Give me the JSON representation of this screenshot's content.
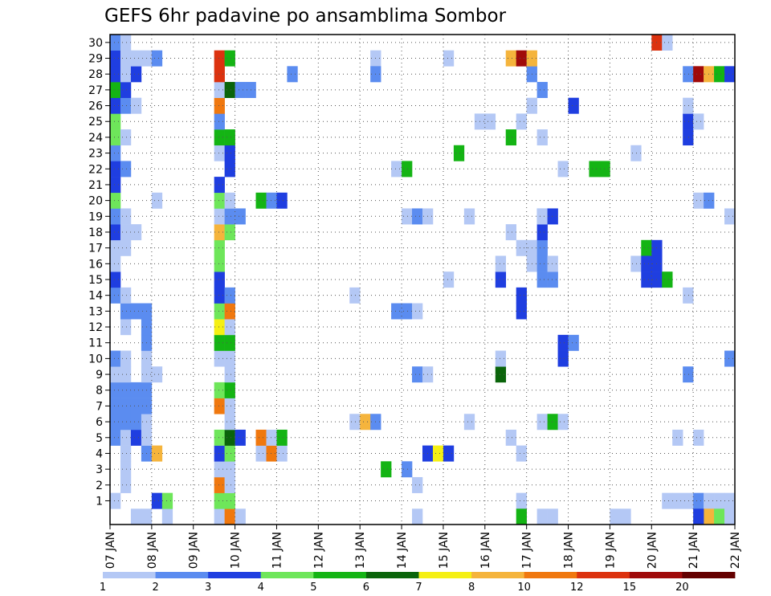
{
  "chart_data": {
    "type": "heatmap",
    "title": "GEFS 6hr padavine po ansamblima Sombor",
    "xlabel": "",
    "ylabel": "",
    "x_ticks": [
      "07 JAN",
      "08 JAN",
      "09 JAN",
      "10 JAN",
      "11 JAN",
      "12 JAN",
      "13 JAN",
      "14 JAN",
      "15 JAN",
      "16 JAN",
      "17 JAN",
      "18 JAN",
      "19 JAN",
      "20 JAN",
      "21 JAN",
      "22 JAN"
    ],
    "y_ticks": [
      1,
      2,
      3,
      4,
      5,
      6,
      7,
      8,
      9,
      10,
      11,
      12,
      13,
      14,
      15,
      16,
      17,
      18,
      19,
      20,
      21,
      22,
      23,
      24,
      25,
      26,
      27,
      28,
      29,
      30
    ],
    "xlim": [
      "07 JAN",
      "22 JAN"
    ],
    "ylim": [
      0,
      30
    ],
    "grid": true,
    "colorbar": {
      "labels": [
        "1",
        "2",
        "3",
        "4",
        "5",
        "6",
        "7",
        "8",
        "10",
        "12",
        "15",
        "20"
      ],
      "colors": [
        "#b4c8f5",
        "#5b8cf0",
        "#1f3ee0",
        "#6ee65a",
        "#14b414",
        "#0a640a",
        "#f5f014",
        "#f5b43c",
        "#f0780f",
        "#dc320f",
        "#a00a0a",
        "#640000"
      ]
    },
    "cells": [
      [
        0,
        1,
        1
      ],
      [
        1,
        2,
        1
      ],
      [
        1,
        3,
        1
      ],
      [
        1,
        4,
        1
      ],
      [
        0,
        5,
        2
      ],
      [
        0,
        6,
        2
      ],
      [
        0,
        7,
        2
      ],
      [
        0,
        8,
        2
      ],
      [
        0,
        9,
        1
      ],
      [
        0,
        10,
        2
      ],
      [
        1,
        13,
        4
      ],
      [
        0,
        14,
        2
      ],
      [
        0,
        15,
        3
      ],
      [
        0,
        16,
        1
      ],
      [
        0,
        17,
        1
      ],
      [
        0,
        18,
        3
      ],
      [
        0,
        19,
        2
      ],
      [
        0,
        20,
        4
      ],
      [
        0,
        21,
        3
      ],
      [
        0,
        22,
        3
      ],
      [
        0,
        23,
        2
      ],
      [
        0,
        24,
        4
      ],
      [
        0,
        25,
        4
      ],
      [
        0,
        26,
        3
      ],
      [
        0,
        27,
        5
      ],
      [
        0,
        28,
        3
      ],
      [
        0,
        29,
        3
      ],
      [
        0,
        30,
        2
      ],
      [
        1,
        5,
        1
      ],
      [
        1,
        6,
        2
      ],
      [
        1,
        7,
        2
      ],
      [
        1,
        8,
        2
      ],
      [
        1,
        9,
        1
      ],
      [
        1,
        10,
        1
      ],
      [
        1,
        12,
        1
      ],
      [
        1,
        13,
        2
      ],
      [
        1,
        14,
        1
      ],
      [
        1,
        17,
        1
      ],
      [
        1,
        18,
        1
      ],
      [
        1,
        19,
        1
      ],
      [
        1,
        22,
        2
      ],
      [
        1,
        24,
        1
      ],
      [
        1,
        26,
        2
      ],
      [
        1,
        27,
        3
      ],
      [
        1,
        28,
        1
      ],
      [
        1,
        29,
        1
      ],
      [
        1,
        30,
        1
      ],
      [
        2,
        0,
        1
      ],
      [
        2,
        5,
        3
      ],
      [
        2,
        6,
        2
      ],
      [
        2,
        7,
        2
      ],
      [
        2,
        8,
        2
      ],
      [
        2,
        13,
        2
      ],
      [
        2,
        18,
        1
      ],
      [
        2,
        26,
        1
      ],
      [
        2,
        28,
        3
      ],
      [
        2,
        29,
        1
      ],
      [
        3,
        0,
        1
      ],
      [
        3,
        4,
        2
      ],
      [
        3,
        5,
        1
      ],
      [
        3,
        6,
        1
      ],
      [
        3,
        7,
        2
      ],
      [
        3,
        8,
        2
      ],
      [
        3,
        9,
        1
      ],
      [
        3,
        10,
        1
      ],
      [
        3,
        11,
        2
      ],
      [
        3,
        12,
        2
      ],
      [
        3,
        13,
        2
      ],
      [
        3,
        29,
        1
      ],
      [
        4,
        1,
        3
      ],
      [
        4,
        4,
        8
      ],
      [
        4,
        9,
        1
      ],
      [
        4,
        20,
        1
      ],
      [
        4,
        29,
        2
      ],
      [
        5,
        0,
        1
      ],
      [
        5,
        1,
        4
      ],
      [
        10,
        0,
        1
      ],
      [
        10,
        1,
        4
      ],
      [
        10,
        2,
        9
      ],
      [
        10,
        3,
        1
      ],
      [
        10,
        4,
        3
      ],
      [
        10,
        5,
        4
      ],
      [
        10,
        7,
        9
      ],
      [
        10,
        8,
        4
      ],
      [
        10,
        10,
        1
      ],
      [
        10,
        11,
        5
      ],
      [
        10,
        12,
        7
      ],
      [
        10,
        13,
        4
      ],
      [
        10,
        14,
        3
      ],
      [
        10,
        15,
        3
      ],
      [
        10,
        16,
        4
      ],
      [
        10,
        17,
        4
      ],
      [
        10,
        18,
        8
      ],
      [
        10,
        19,
        1
      ],
      [
        10,
        20,
        4
      ],
      [
        10,
        21,
        3
      ],
      [
        10,
        23,
        1
      ],
      [
        10,
        24,
        5
      ],
      [
        10,
        25,
        2
      ],
      [
        10,
        26,
        9
      ],
      [
        10,
        27,
        1
      ],
      [
        10,
        28,
        10
      ],
      [
        10,
        29,
        10
      ],
      [
        11,
        0,
        9
      ],
      [
        11,
        1,
        4
      ],
      [
        11,
        2,
        1
      ],
      [
        11,
        3,
        1
      ],
      [
        11,
        4,
        4
      ],
      [
        11,
        5,
        6
      ],
      [
        11,
        6,
        1
      ],
      [
        11,
        7,
        1
      ],
      [
        11,
        8,
        5
      ],
      [
        11,
        9,
        1
      ],
      [
        11,
        10,
        1
      ],
      [
        11,
        11,
        5
      ],
      [
        11,
        12,
        1
      ],
      [
        11,
        13,
        9
      ],
      [
        11,
        14,
        2
      ],
      [
        11,
        18,
        4
      ],
      [
        11,
        19,
        2
      ],
      [
        11,
        20,
        1
      ],
      [
        11,
        22,
        3
      ],
      [
        11,
        23,
        3
      ],
      [
        11,
        24,
        5
      ],
      [
        11,
        27,
        6
      ],
      [
        11,
        29,
        5
      ],
      [
        12,
        0,
        1
      ],
      [
        12,
        5,
        3
      ],
      [
        12,
        19,
        2
      ],
      [
        12,
        27,
        2
      ],
      [
        13,
        27,
        2
      ],
      [
        14,
        4,
        1
      ],
      [
        14,
        5,
        9
      ],
      [
        14,
        20,
        5
      ],
      [
        15,
        4,
        9
      ],
      [
        15,
        5,
        1
      ],
      [
        15,
        20,
        2
      ],
      [
        16,
        4,
        1
      ],
      [
        16,
        5,
        5
      ],
      [
        16,
        20,
        3
      ],
      [
        17,
        28,
        2
      ],
      [
        23,
        6,
        1
      ],
      [
        23,
        14,
        1
      ],
      [
        24,
        6,
        8
      ],
      [
        25,
        6,
        2
      ],
      [
        25,
        29,
        1
      ],
      [
        25,
        28,
        2
      ],
      [
        26,
        3,
        5
      ],
      [
        27,
        13,
        2
      ],
      [
        27,
        22,
        1
      ],
      [
        28,
        3,
        2
      ],
      [
        28,
        13,
        2
      ],
      [
        28,
        19,
        1
      ],
      [
        28,
        22,
        5
      ],
      [
        29,
        0,
        1
      ],
      [
        29,
        2,
        1
      ],
      [
        29,
        9,
        2
      ],
      [
        29,
        13,
        1
      ],
      [
        29,
        19,
        2
      ],
      [
        30,
        4,
        3
      ],
      [
        30,
        9,
        1
      ],
      [
        30,
        19,
        1
      ],
      [
        31,
        4,
        7
      ],
      [
        32,
        4,
        3
      ],
      [
        32,
        15,
        1
      ],
      [
        32,
        29,
        1
      ],
      [
        33,
        23,
        5
      ],
      [
        34,
        6,
        1
      ],
      [
        34,
        19,
        1
      ],
      [
        35,
        25,
        1
      ],
      [
        36,
        25,
        1
      ],
      [
        37,
        9,
        6
      ],
      [
        37,
        10,
        1
      ],
      [
        37,
        15,
        3
      ],
      [
        37,
        16,
        1
      ],
      [
        38,
        5,
        1
      ],
      [
        38,
        18,
        1
      ],
      [
        38,
        24,
        5
      ],
      [
        38,
        29,
        8
      ],
      [
        39,
        1,
        1
      ],
      [
        39,
        4,
        1
      ],
      [
        39,
        0,
        5
      ],
      [
        39,
        13,
        3
      ],
      [
        39,
        14,
        3
      ],
      [
        39,
        25,
        1
      ],
      [
        39,
        17,
        1
      ],
      [
        39,
        29,
        11
      ],
      [
        40,
        16,
        1
      ],
      [
        40,
        17,
        1
      ],
      [
        40,
        26,
        1
      ],
      [
        40,
        28,
        2
      ],
      [
        40,
        29,
        8
      ],
      [
        41,
        6,
        1
      ],
      [
        41,
        0,
        1
      ],
      [
        41,
        15,
        2
      ],
      [
        41,
        16,
        2
      ],
      [
        41,
        17,
        2
      ],
      [
        41,
        18,
        3
      ],
      [
        41,
        19,
        2
      ],
      [
        41,
        19,
        1
      ],
      [
        41,
        24,
        1
      ],
      [
        41,
        27,
        2
      ],
      [
        42,
        0,
        1
      ],
      [
        42,
        6,
        5
      ],
      [
        42,
        15,
        2
      ],
      [
        42,
        16,
        1
      ],
      [
        42,
        19,
        3
      ],
      [
        43,
        6,
        1
      ],
      [
        43,
        10,
        3
      ],
      [
        43,
        11,
        3
      ],
      [
        43,
        22,
        1
      ],
      [
        44,
        11,
        2
      ],
      [
        44,
        26,
        3
      ],
      [
        46,
        22,
        5
      ],
      [
        47,
        22,
        5
      ],
      [
        48,
        0,
        1
      ],
      [
        49,
        0,
        1
      ],
      [
        50,
        23,
        1
      ],
      [
        50,
        16,
        1
      ],
      [
        51,
        17,
        5
      ],
      [
        51,
        16,
        3
      ],
      [
        51,
        15,
        3
      ],
      [
        52,
        16,
        3
      ],
      [
        52,
        15,
        3
      ],
      [
        52,
        17,
        3
      ],
      [
        52,
        30,
        10
      ],
      [
        53,
        15,
        5
      ],
      [
        53,
        1,
        1
      ],
      [
        53,
        30,
        1
      ],
      [
        54,
        1,
        1
      ],
      [
        54,
        5,
        1
      ],
      [
        55,
        1,
        1
      ],
      [
        55,
        9,
        2
      ],
      [
        55,
        14,
        1
      ],
      [
        55,
        24,
        3
      ],
      [
        55,
        25,
        3
      ],
      [
        55,
        26,
        1
      ],
      [
        55,
        28,
        2
      ],
      [
        56,
        1,
        2
      ],
      [
        56,
        5,
        1
      ],
      [
        56,
        20,
        1
      ],
      [
        56,
        25,
        1
      ],
      [
        56,
        28,
        11
      ],
      [
        57,
        1,
        1
      ],
      [
        57,
        20,
        2
      ],
      [
        57,
        28,
        8
      ],
      [
        58,
        1,
        1
      ],
      [
        58,
        28,
        5
      ],
      [
        59,
        1,
        1
      ],
      [
        59,
        10,
        2
      ],
      [
        59,
        19,
        1
      ],
      [
        59,
        28,
        3
      ],
      [
        60,
        10,
        2
      ],
      [
        60,
        28,
        2
      ],
      [
        61,
        5,
        2
      ],
      [
        61,
        26,
        1
      ],
      [
        62,
        5,
        3
      ],
      [
        62,
        18,
        1
      ],
      [
        62,
        29,
        1
      ],
      [
        57,
        0,
        8
      ],
      [
        58,
        0,
        4
      ],
      [
        56,
        0,
        3
      ],
      [
        59,
        0,
        1
      ]
    ]
  }
}
